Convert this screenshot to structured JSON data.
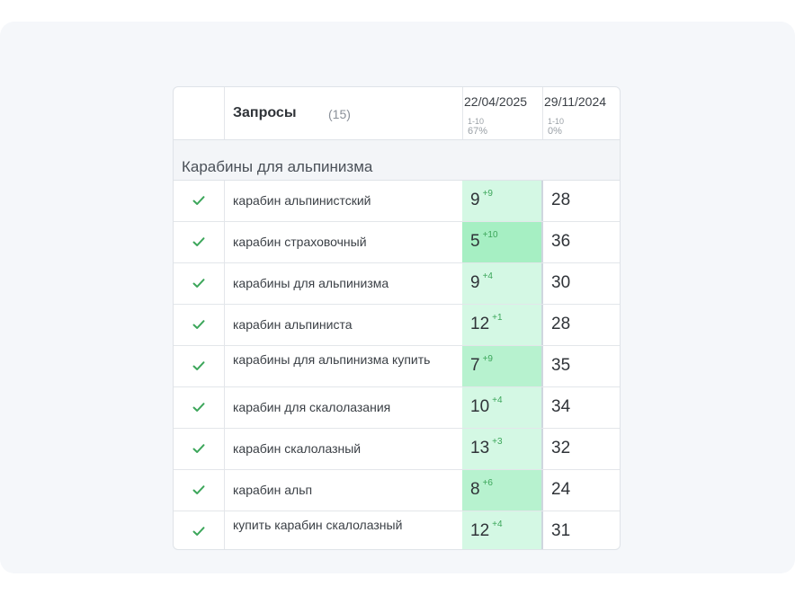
{
  "header": {
    "title": "Запросы",
    "count": "(15)",
    "dates": [
      {
        "label": "22/04/2025",
        "range": "1-10",
        "pct": "67%"
      },
      {
        "label": "29/11/2024",
        "range": "1-10",
        "pct": "0%"
      }
    ]
  },
  "group": {
    "title": "Карабины для альпинизма"
  },
  "colors": {
    "check": "#3ca65a",
    "light_green": "#d4f8e4",
    "mid_green": "#b7f2cf",
    "strong_green": "#a6efc3",
    "delta": "#3ca65a"
  },
  "rows": [
    {
      "query": "карабин альпинистский",
      "pos": "9",
      "delta": "+9",
      "old": "28"
    },
    {
      "query": "карабин страховочный",
      "pos": "5",
      "delta": "+10",
      "old": "36"
    },
    {
      "query": "карабины для альпинизма",
      "pos": "9",
      "delta": "+4",
      "old": "30"
    },
    {
      "query": "карабин альпиниста",
      "pos": "12",
      "delta": "+1",
      "old": "28"
    },
    {
      "query": "карабины для альпинизма купить",
      "pos": "7",
      "delta": "+9",
      "old": "35"
    },
    {
      "query": "карабин для скалолазания",
      "pos": "10",
      "delta": "+4",
      "old": "34"
    },
    {
      "query": "карабин скалолазный",
      "pos": "13",
      "delta": "+3",
      "old": "32"
    },
    {
      "query": "карабин альп",
      "pos": "8",
      "delta": "+6",
      "old": "24"
    },
    {
      "query": "купить карабин скалолазный",
      "pos": "12",
      "delta": "+4",
      "old": "31"
    }
  ]
}
